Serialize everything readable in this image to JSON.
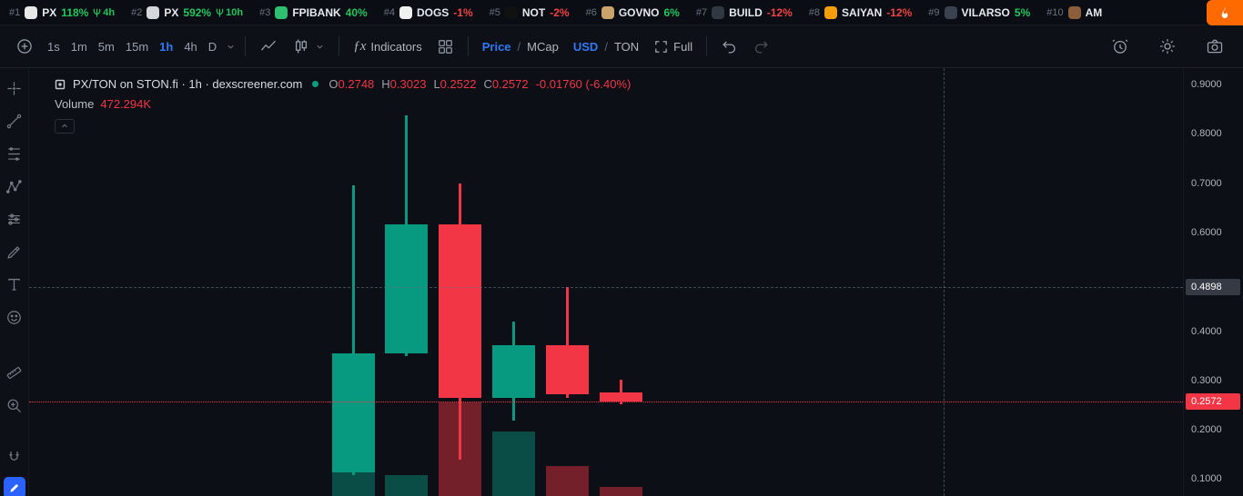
{
  "colors": {
    "candle_up": "#089981",
    "candle_down": "#f23645",
    "accent_blue": "#3179f5",
    "ticker_up": "#22c55e",
    "ticker_down": "#ef4444",
    "flame_bg": "#ff6a00",
    "crosshair_label_bg": "#363a45",
    "last_price_label_bg": "#f23645"
  },
  "ticker_bar": {
    "items": [
      {
        "rank": "#1",
        "name": "PX",
        "change": "118%",
        "dir": "up",
        "age": "4h",
        "icon_color": "#e8e8e8"
      },
      {
        "rank": "#2",
        "name": "PX",
        "change": "592%",
        "dir": "up",
        "age": "10h",
        "icon_color": "#d4d6d9"
      },
      {
        "rank": "#3",
        "name": "FPIBANK",
        "change": "40%",
        "dir": "up",
        "age": "",
        "icon_color": "#2fbf71"
      },
      {
        "rank": "#4",
        "name": "DOGS",
        "change": "-1%",
        "dir": "down",
        "age": "",
        "icon_color": "#f0f0f0"
      },
      {
        "rank": "#5",
        "name": "NOT",
        "change": "-2%",
        "dir": "down",
        "age": "",
        "icon_color": "#111111"
      },
      {
        "rank": "#6",
        "name": "GOVNO",
        "change": "6%",
        "dir": "up",
        "age": "",
        "icon_color": "#c9a36b"
      },
      {
        "rank": "#7",
        "name": "BUILD",
        "change": "-12%",
        "dir": "down",
        "age": "",
        "icon_color": "#303842"
      },
      {
        "rank": "#8",
        "name": "SAIYAN",
        "change": "-12%",
        "dir": "down",
        "age": "",
        "icon_color": "#f59e0b"
      },
      {
        "rank": "#9",
        "name": "VILARSO",
        "change": "5%",
        "dir": "up",
        "age": "",
        "icon_color": "#3a4250"
      },
      {
        "rank": "#10",
        "name": "AM",
        "change": "",
        "dir": "up",
        "age": "",
        "icon_color": "#8b5e3c"
      }
    ]
  },
  "toolbar": {
    "timeframes": [
      "1s",
      "1m",
      "5m",
      "15m",
      "1h",
      "4h",
      "D"
    ],
    "active_timeframe": "1h",
    "fx_glyph": "ƒx",
    "indicators_label": "Indicators",
    "price_mcap": {
      "active": "Price",
      "sep": "/",
      "inactive": "MCap"
    },
    "usd_ton": {
      "active": "USD",
      "sep": "/",
      "inactive": "TON"
    },
    "full_label": "Full"
  },
  "legend": {
    "title": "PX/TON on STON.fi · 1h · dexscreener.com",
    "o_label": "O",
    "o_value": "0.2748",
    "h_label": "H",
    "h_value": "0.3023",
    "l_label": "L",
    "l_value": "0.2522",
    "c_label": "C",
    "c_value": "0.2572",
    "change": "-0.01760 (-6.40%)",
    "volume_label": "Volume",
    "volume_value": "472.294K"
  },
  "price_axis": {
    "ticks": [
      {
        "label": "0.9000",
        "price": 0.9
      },
      {
        "label": "0.8000",
        "price": 0.8
      },
      {
        "label": "0.7000",
        "price": 0.7
      },
      {
        "label": "0.6000",
        "price": 0.6
      },
      {
        "label": "0.4000",
        "price": 0.4
      },
      {
        "label": "0.3000",
        "price": 0.3
      },
      {
        "label": "0.2000",
        "price": 0.2
      },
      {
        "label": "0.1000",
        "price": 0.1
      }
    ],
    "crosshair_label": {
      "label": "0.4898",
      "price": 0.4898
    },
    "last_price_label": {
      "label": "0.2572",
      "price": 0.2572
    }
  },
  "chart_data": {
    "type": "candlestick",
    "pair": "PX/TON",
    "venue": "STON.fi",
    "interval": "1h",
    "source": "dexscreener.com",
    "y_axis_visible_range": [
      0.066,
      0.933
    ],
    "crosshair_price": 0.4898,
    "last_price": 0.2572,
    "candles": [
      {
        "open": 0.113,
        "high": 0.695,
        "low": 0.108,
        "close": 0.355,
        "volume": 1230000
      },
      {
        "open": 0.355,
        "high": 0.838,
        "low": 0.35,
        "close": 0.617,
        "volume": 1090000
      },
      {
        "open": 0.617,
        "high": 0.7,
        "low": 0.14,
        "close": 0.264,
        "volume": 4870000
      },
      {
        "open": 0.264,
        "high": 0.42,
        "low": 0.218,
        "close": 0.372,
        "volume": 3350000
      },
      {
        "open": 0.372,
        "high": 0.4898,
        "low": 0.265,
        "close": 0.272,
        "volume": 1560000
      },
      {
        "open": 0.2748,
        "high": 0.3023,
        "low": 0.2522,
        "close": 0.2572,
        "volume": 472294
      }
    ]
  }
}
